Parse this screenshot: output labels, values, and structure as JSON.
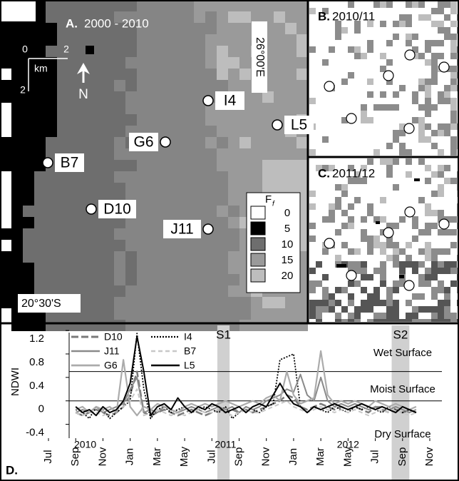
{
  "panels": {
    "a": {
      "letter": "A.",
      "title": "2000 - 2010",
      "scale": {
        "start": "0",
        "end": "2",
        "unit": "km",
        "side": "2"
      },
      "north": "N",
      "longitude": "26°00ʹE",
      "latitude": "20°30ʹS",
      "sites": [
        "I4",
        "L5",
        "G6",
        "B7",
        "D10",
        "J11"
      ],
      "legend": {
        "title": "F",
        "title_sub": "f",
        "items": [
          {
            "label": "0",
            "color": "#ffffff"
          },
          {
            "label": "5",
            "color": "#000000"
          },
          {
            "label": "10",
            "color": "#6e6e6e"
          },
          {
            "label": "15",
            "color": "#9a9a9a"
          },
          {
            "label": "20",
            "color": "#bdbdbd"
          }
        ]
      }
    },
    "b": {
      "letter": "B.",
      "title": "2010/11"
    },
    "c": {
      "letter": "C.",
      "title": "2011/12"
    }
  },
  "chart_data": {
    "type": "line",
    "letter": "D.",
    "y_label": "NDWI",
    "x": [
      2,
      2.5,
      3,
      3.5,
      4,
      4.5,
      5,
      5.5,
      6,
      6.5,
      7,
      7.5,
      8,
      8.5,
      9,
      9.5,
      10,
      10.5,
      11,
      11.5,
      12,
      12.5,
      13,
      13.5,
      14,
      14.5,
      15,
      15.5,
      16,
      16.5,
      17,
      17.5,
      18,
      18.5,
      19,
      19.5,
      20,
      20.5,
      21,
      21.5,
      22,
      22.5,
      23,
      23.5,
      24,
      24.5,
      25,
      25.5,
      26,
      26.5,
      27
    ],
    "xlim": [
      0,
      28
    ],
    "xticks": [
      {
        "value": 0,
        "label": "Jul"
      },
      {
        "value": 2,
        "label": "Sep"
      },
      {
        "value": 4,
        "label": "Nov"
      },
      {
        "value": 6,
        "label": "Jan"
      },
      {
        "value": 8,
        "label": "Mar"
      },
      {
        "value": 10,
        "label": "May"
      },
      {
        "value": 12,
        "label": "Jul"
      },
      {
        "value": 14,
        "label": "Sep"
      },
      {
        "value": 16,
        "label": "Nov"
      },
      {
        "value": 18,
        "label": "Jan"
      },
      {
        "value": 20,
        "label": "Mar"
      },
      {
        "value": 22,
        "label": "May"
      },
      {
        "value": 24,
        "label": "Jul"
      },
      {
        "value": 26,
        "label": "Sep"
      },
      {
        "value": 28,
        "label": "Nov"
      }
    ],
    "year_labels": [
      {
        "value": 2.7,
        "label": "2010"
      },
      {
        "value": 13,
        "label": "2011"
      },
      {
        "value": 22,
        "label": "2012"
      }
    ],
    "ylim": [
      -0.6,
      1.25
    ],
    "yticks": [
      1.2,
      0.8,
      0.4,
      0,
      -0.4
    ],
    "thresholds": [
      0.5,
      0
    ],
    "zone_labels": [
      "Wet Surface",
      "Moist Surface",
      "Dry Surface"
    ],
    "bands": [
      {
        "label": "S1",
        "range": [
          12.4,
          13.3
        ]
      },
      {
        "label": "S2",
        "range": [
          25.2,
          26.5
        ]
      }
    ],
    "series": [
      {
        "name": "D10",
        "color": "#7a7a7a",
        "dash": "10,4",
        "width": 2.5,
        "values": [
          -0.2,
          -0.25,
          -0.2,
          -0.15,
          -0.2,
          -0.25,
          -0.2,
          -0.1,
          0.1,
          0.5,
          -0.2,
          -0.25,
          -0.2,
          -0.15,
          -0.2,
          -0.25,
          -0.2,
          -0.15,
          -0.2,
          -0.25,
          -0.2,
          -0.15,
          -0.2,
          -0.15,
          -0.2,
          -0.15,
          -0.2,
          -0.15,
          -0.1,
          -0.05,
          0.0,
          0.1,
          0.05,
          -0.1,
          -0.15,
          -0.1,
          -0.05,
          -0.1,
          -0.15,
          -0.1,
          -0.15,
          -0.1,
          -0.15,
          -0.2,
          -0.1,
          -0.15,
          -0.2,
          -0.15,
          -0.2,
          -0.15,
          -0.2
        ]
      },
      {
        "name": "I4",
        "color": "#000000",
        "dash": "2,2",
        "width": 1.8,
        "values": [
          -0.15,
          -0.2,
          -0.3,
          -0.1,
          -0.15,
          -0.3,
          -0.2,
          -0.1,
          0.0,
          1.15,
          0.2,
          -0.3,
          -0.15,
          -0.1,
          -0.2,
          -0.15,
          -0.1,
          -0.2,
          -0.15,
          -0.1,
          -0.15,
          -0.2,
          -0.1,
          -0.3,
          -0.2,
          -0.1,
          -0.15,
          -0.2,
          -0.1,
          -0.05,
          0.7,
          0.75,
          0.8,
          -0.1,
          -0.2,
          -0.1,
          -0.15,
          -0.2,
          -0.1,
          -0.15,
          -0.2,
          -0.1,
          -0.15,
          -0.1,
          -0.15,
          -0.2,
          -0.1,
          -0.15,
          -0.2,
          -0.15,
          -0.2
        ]
      },
      {
        "name": "J11",
        "color": "#8a8a8a",
        "dash": "none",
        "width": 2,
        "values": [
          -0.2,
          -0.15,
          -0.2,
          -0.1,
          -0.2,
          -0.15,
          -0.1,
          -0.05,
          0.2,
          0.4,
          -0.2,
          -0.15,
          -0.2,
          -0.1,
          -0.15,
          -0.2,
          -0.15,
          -0.1,
          -0.15,
          -0.2,
          -0.15,
          -0.1,
          -0.15,
          -0.1,
          -0.2,
          -0.1,
          -0.15,
          -0.1,
          0.0,
          0.05,
          0.1,
          0.2,
          0.15,
          0.45,
          0.1,
          0.0,
          0.4,
          0.0,
          -0.1,
          -0.05,
          -0.1,
          -0.05,
          -0.1,
          -0.15,
          -0.1,
          -0.1,
          -0.15,
          -0.1,
          -0.15,
          -0.2,
          -0.15
        ]
      },
      {
        "name": "B7",
        "color": "#c8c8c8",
        "dash": "6,4",
        "width": 2,
        "values": [
          -0.2,
          -0.25,
          -0.2,
          -0.2,
          -0.25,
          -0.2,
          -0.15,
          -0.1,
          0.0,
          0.2,
          -0.25,
          -0.2,
          -0.15,
          -0.2,
          -0.25,
          -0.2,
          -0.25,
          -0.2,
          -0.15,
          -0.2,
          -0.2,
          -0.15,
          -0.2,
          -0.25,
          -0.2,
          -0.15,
          -0.2,
          -0.2,
          -0.15,
          -0.1,
          -0.05,
          0.0,
          -0.1,
          -0.15,
          -0.2,
          -0.15,
          -0.1,
          -0.15,
          -0.2,
          -0.15,
          -0.2,
          -0.15,
          -0.2,
          -0.25,
          -0.2,
          -0.15,
          -0.2,
          -0.15,
          -0.2,
          -0.25,
          -0.2
        ]
      },
      {
        "name": "G6",
        "color": "#ababab",
        "dash": "none",
        "width": 2.2,
        "values": [
          -0.15,
          -0.1,
          -0.2,
          -0.1,
          -0.15,
          -0.1,
          -0.2,
          0.7,
          -0.1,
          -0.25,
          -0.1,
          -0.15,
          -0.05,
          -0.1,
          -0.15,
          -0.2,
          -0.1,
          -0.05,
          -0.1,
          -0.05,
          -0.1,
          -0.05,
          0.0,
          -0.05,
          -0.1,
          -0.05,
          0.0,
          -0.05,
          0.05,
          0.1,
          0.0,
          0.5,
          0.1,
          -0.05,
          0.0,
          0.05,
          0.85,
          0.1,
          -0.05,
          0.0,
          -0.05,
          0.0,
          -0.05,
          -0.1,
          0.0,
          -0.05,
          -0.1,
          -0.05,
          -0.1,
          -0.15,
          -0.1
        ]
      },
      {
        "name": "L5",
        "color": "#000000",
        "dash": "none",
        "width": 2,
        "values": [
          -0.1,
          -0.2,
          -0.15,
          -0.25,
          -0.1,
          -0.2,
          -0.15,
          0.0,
          0.3,
          1.1,
          0.5,
          -0.25,
          -0.1,
          -0.05,
          -0.15,
          0.05,
          -0.1,
          -0.2,
          -0.1,
          -0.15,
          -0.05,
          -0.1,
          -0.2,
          -0.15,
          -0.1,
          -0.2,
          -0.1,
          -0.05,
          -0.1,
          0.1,
          0.3,
          0.1,
          -0.05,
          -0.1,
          -0.2,
          -0.1,
          -0.15,
          -0.1,
          -0.05,
          -0.1,
          -0.15,
          -0.1,
          -0.05,
          -0.1,
          -0.15,
          -0.1,
          -0.15,
          -0.2,
          -0.1,
          -0.15,
          -0.2
        ]
      }
    ]
  }
}
